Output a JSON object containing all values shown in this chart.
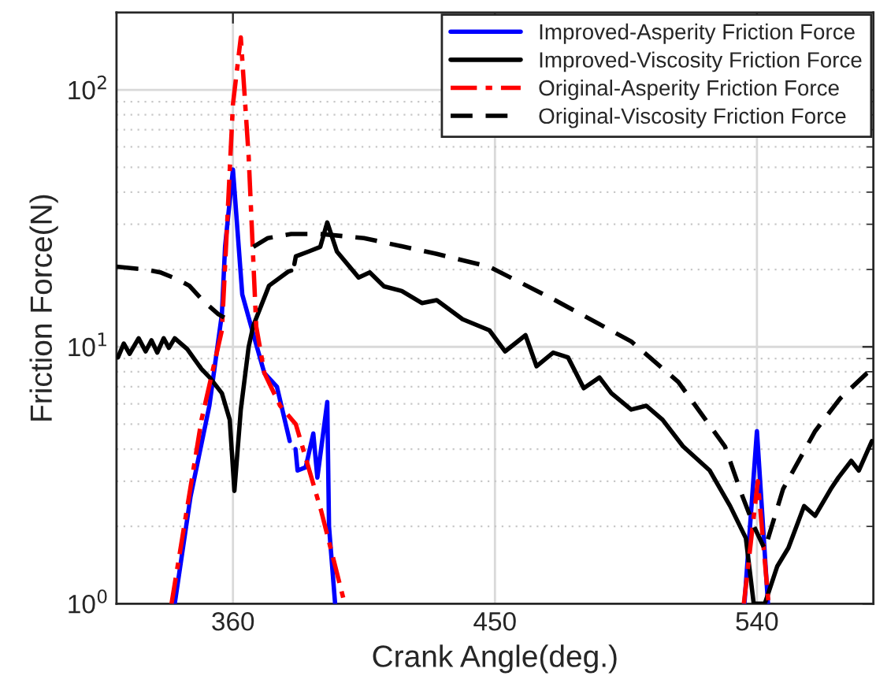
{
  "chart_data": {
    "type": "line",
    "xlabel": "Crank Angle(deg.)",
    "ylabel": "Friction Force(N)",
    "log": true,
    "grid": true,
    "legend": "top right",
    "marker": "none",
    "xlim": [
      320,
      580
    ],
    "xticks": [
      360,
      450,
      540
    ],
    "ylim": [
      1,
      200
    ],
    "yticks": [
      {
        "value": 1,
        "label": "10$^{0}$"
      },
      {
        "value": 10,
        "label": "10$^{1}$"
      },
      {
        "value": 100,
        "label": "10$^{2}$"
      }
    ],
    "series": [
      {
        "name": "Improved-Asperity Friction Force",
        "color": "#0000ff",
        "line_style": "solid",
        "x": [
          340,
          345.4,
          351.9,
          356.2,
          357.3,
          360,
          363.2,
          367,
          370.8,
          375.1,
          379.5,
          380.5,
          381.5,
          382.2,
          385,
          387.6,
          389,
          392.4,
          393,
          395.1,
          null,
          535.7,
          540,
          543.8
        ],
        "values": [
          1,
          2.6,
          5.9,
          13.4,
          24.6,
          49,
          16,
          11.2,
          7.9,
          7,
          4.3,
          null,
          4,
          3.3,
          3.4,
          4.6,
          3.1,
          6.1,
          2.0,
          1.0,
          null,
          1,
          4.7,
          1
        ]
      },
      {
        "name": "Improved-Viscosity Friction Force",
        "color": "#000000",
        "line_style": "solid",
        "x": [
          320.5,
          322.5,
          324.5,
          327.6,
          330,
          332,
          334,
          336.2,
          338,
          340,
          344.3,
          349.2,
          352,
          356.2,
          358.9,
          360.5,
          362.7,
          365.4,
          367,
          372.4,
          378.9,
          380,
          380.5,
          381.1,
          381.6,
          386,
          390,
          392.4,
          395.7,
          403.2,
          407,
          411.9,
          418,
          424.9,
          430,
          438.9,
          448.1,
          453.5,
          460.5,
          464.3,
          470,
          475.1,
          480.5,
          485.9,
          490,
          496.8,
          502,
          507.6,
          514.6,
          523.8,
          530.8,
          536.2,
          538.9,
          542.7,
          547,
          550.8,
          556.2,
          560,
          565.4,
          568,
          572.4,
          575,
          579.5
        ],
        "values": [
          9.1,
          10.3,
          9.4,
          10.8,
          9.6,
          10.6,
          9.5,
          10.8,
          9.9,
          10.8,
          9.8,
          8.2,
          7.6,
          6.6,
          5.2,
          2.75,
          5.7,
          10,
          12.1,
          17.3,
          19.6,
          19.8,
          null,
          21,
          22.5,
          23.5,
          24.5,
          30.5,
          23.5,
          18.6,
          19.5,
          17.2,
          16.5,
          14.8,
          15.2,
          12.8,
          11.6,
          9.6,
          11.1,
          8.4,
          9.5,
          9.1,
          6.9,
          7.6,
          6.6,
          5.7,
          5.9,
          5.2,
          4.1,
          3.3,
          2.4,
          1.8,
          1.0,
          1.0,
          1.4,
          1.65,
          2.4,
          2.2,
          2.8,
          3.1,
          3.6,
          3.3,
          4.3
        ]
      },
      {
        "name": "Original-Asperity Friction Force",
        "color": "#ff0000",
        "line_style": "dashdot",
        "x": [
          338.9,
          349.2,
          356.2,
          357.8,
          360,
          362.7,
          365.4,
          368,
          370.8,
          376.2,
          381.6,
          390.3,
          398.4,
          null,
          535.5,
          540.3,
          544
        ],
        "values": [
          1,
          5.2,
          11.6,
          27,
          88,
          160,
          55,
          12,
          7.9,
          5.9,
          5,
          2.3,
          1,
          null,
          1,
          3.0,
          1
        ]
      },
      {
        "name": "Original-Viscosity Friction Force",
        "color": "#000000",
        "line_style": "dashed",
        "x": [
          320,
          330,
          335,
          340,
          345,
          350,
          355,
          357,
          null,
          367,
          372,
          380,
          390,
          405,
          430,
          448,
          469.7,
          496.8,
          513,
          529,
          534.6,
          539,
          542.7,
          549,
          560,
          568.6,
          577.8,
          580
        ],
        "values": [
          20.5,
          20,
          19.5,
          18.5,
          17.3,
          15,
          13.4,
          13,
          null,
          24.5,
          26.5,
          27.5,
          27.5,
          26.5,
          23,
          20.5,
          15.4,
          10.5,
          7.3,
          4.1,
          2.7,
          2.0,
          1.63,
          2.8,
          4.7,
          6.3,
          7.9,
          8.2
        ]
      }
    ]
  }
}
